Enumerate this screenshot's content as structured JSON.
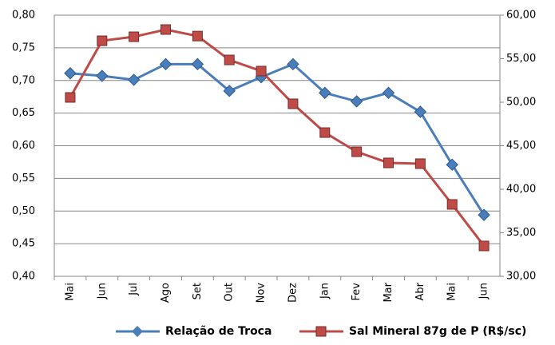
{
  "chart_data": {
    "type": "line",
    "categories": [
      "Mai",
      "Jun",
      "Jul",
      "Ago",
      "Set",
      "Out",
      "Nov",
      "Dez",
      "Jan",
      "Fev",
      "Mar",
      "Abr",
      "Mai",
      "Jun"
    ],
    "series": [
      {
        "name": "Relação de Troca",
        "color": "#4a7ebb",
        "marker": "diamond",
        "values": [
          0.711,
          0.707,
          0.701,
          0.725,
          0.725,
          0.684,
          0.705,
          0.725,
          0.681,
          0.668,
          0.681,
          0.652,
          0.571,
          0.494
        ]
      },
      {
        "name": "Sal Mineral 87g de P (R$/sc)",
        "color": "#be4b48",
        "marker": "square",
        "axis": "y2",
        "values": [
          50.55,
          57.06,
          57.52,
          58.35,
          57.6,
          54.86,
          53.58,
          49.82,
          46.51,
          44.31,
          43.03,
          42.94,
          38.26,
          33.49
        ]
      }
    ],
    "ylim": [
      0.4,
      0.8
    ],
    "yticks": [
      {
        "value": 0.4,
        "label": "0,40"
      },
      {
        "value": 0.45,
        "label": "0,45"
      },
      {
        "value": 0.5,
        "label": "0,50"
      },
      {
        "value": 0.55,
        "label": "0,55"
      },
      {
        "value": 0.6,
        "label": "0,60"
      },
      {
        "value": 0.65,
        "label": "0,65"
      },
      {
        "value": 0.7,
        "label": "0,70"
      },
      {
        "value": 0.75,
        "label": "0,75"
      },
      {
        "value": 0.8,
        "label": "0,80"
      }
    ],
    "y2lim": [
      30,
      60
    ],
    "y2ticks": [
      {
        "value": 30,
        "label": "30,00"
      },
      {
        "value": 35,
        "label": "35,00"
      },
      {
        "value": 40,
        "label": "40,00"
      },
      {
        "value": 45,
        "label": "45,00"
      },
      {
        "value": 50,
        "label": "50,00"
      },
      {
        "value": 55,
        "label": "55,00"
      },
      {
        "value": 60,
        "label": "60,00"
      }
    ],
    "grid": true,
    "legend": "bottom"
  }
}
